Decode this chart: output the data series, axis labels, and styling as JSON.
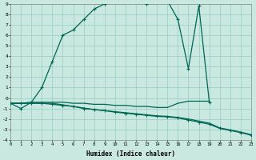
{
  "xlabel": "Humidex (Indice chaleur)",
  "bg_color": "#c8e8e0",
  "grid_color": "#98ccc4",
  "line_color": "#006655",
  "ylim": [
    -4,
    9
  ],
  "xlim": [
    0,
    23
  ],
  "x_peak": [
    0,
    1,
    2,
    3,
    4,
    5,
    6,
    7,
    8,
    9,
    10,
    11,
    12,
    13,
    14,
    15,
    16,
    17,
    18,
    19
  ],
  "y_peak": [
    -0.5,
    -1.0,
    -0.4,
    1.0,
    3.5,
    6.0,
    6.5,
    7.5,
    8.5,
    9.0,
    9.2,
    9.3,
    9.2,
    9.0,
    9.2,
    9.3,
    7.5,
    2.8,
    8.8,
    -0.4
  ],
  "x_flat": [
    0,
    1,
    2,
    3,
    4,
    5,
    6,
    7,
    8,
    9,
    10,
    11,
    12,
    13,
    14,
    15,
    16,
    17,
    18,
    19,
    20,
    21,
    22,
    23
  ],
  "y_flat": [
    -0.5,
    -0.5,
    -0.4,
    -0.4,
    -0.4,
    -0.4,
    -0.5,
    -0.5,
    -0.6,
    -0.6,
    -0.7,
    -0.7,
    -0.8,
    -0.8,
    -0.9,
    -0.9,
    -0.5,
    -0.3,
    -0.3,
    -0.3,
    null,
    null,
    null,
    null
  ],
  "x_dec1": [
    0,
    1,
    2,
    3,
    4,
    5,
    6,
    7,
    8,
    9,
    10,
    11,
    12,
    13,
    14,
    15,
    16,
    17,
    18,
    19,
    20,
    21,
    22,
    23
  ],
  "y_dec1": [
    -0.5,
    -0.5,
    -0.5,
    -0.5,
    -0.6,
    -0.7,
    -0.8,
    -1.0,
    -1.1,
    -1.2,
    -1.35,
    -1.45,
    -1.55,
    -1.65,
    -1.75,
    -1.8,
    -1.9,
    -2.1,
    -2.3,
    -2.5,
    -2.9,
    -3.1,
    -3.3,
    -3.55
  ],
  "x_dec2": [
    0,
    1,
    2,
    3,
    4,
    5,
    6,
    7,
    8,
    9,
    10,
    11,
    12,
    13,
    14,
    15,
    16,
    17,
    18,
    19,
    20,
    21,
    22,
    23
  ],
  "y_dec2": [
    -0.5,
    -0.5,
    -0.5,
    -0.5,
    -0.5,
    -0.65,
    -0.8,
    -0.95,
    -1.1,
    -1.2,
    -1.3,
    -1.4,
    -1.5,
    -1.6,
    -1.7,
    -1.75,
    -1.85,
    -2.0,
    -2.2,
    -2.4,
    -2.85,
    -3.05,
    -3.25,
    -3.5
  ]
}
